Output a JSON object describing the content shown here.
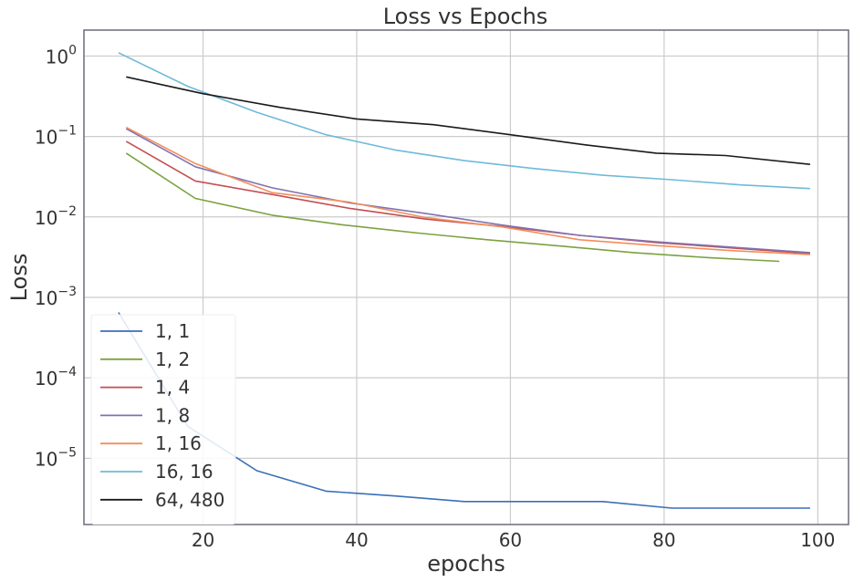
{
  "chart_data": {
    "type": "line",
    "title": "Loss vs Epochs",
    "xlabel": "epochs",
    "ylabel": "Loss",
    "xlim": [
      4.5,
      104
    ],
    "ylim": [
      1.5e-06,
      2.1
    ],
    "yscale": "log",
    "grid": true,
    "legend_position": "bottom-left",
    "xticks": [
      20,
      40,
      60,
      80,
      100
    ],
    "xtick_labels": [
      "20",
      "40",
      "60",
      "80",
      "100"
    ],
    "yticks": [
      1e-05,
      0.0001,
      0.001,
      0.01,
      0.1,
      1
    ],
    "ytick_labels": [
      {
        "base": "10",
        "exp": "−5"
      },
      {
        "base": "10",
        "exp": "−4"
      },
      {
        "base": "10",
        "exp": "−3"
      },
      {
        "base": "10",
        "exp": "−2"
      },
      {
        "base": "10",
        "exp": "−1"
      },
      {
        "base": "10",
        "exp": "0"
      }
    ],
    "series": [
      {
        "name": "1, 1",
        "color": "#3a6fba",
        "x": [
          9,
          18,
          27,
          36,
          45,
          54,
          63,
          72,
          81,
          90,
          99
        ],
        "y": [
          0.00065,
          2.5e-05,
          7e-06,
          3.9e-06,
          3.4e-06,
          2.9e-06,
          2.9e-06,
          2.9e-06,
          2.4e-06,
          2.4e-06,
          2.4e-06
        ]
      },
      {
        "name": "1, 2",
        "color": "#7ba23f",
        "x": [
          10,
          19,
          29,
          38,
          48,
          57,
          67,
          76,
          86,
          95
        ],
        "y": [
          0.062,
          0.017,
          0.0105,
          0.008,
          0.0063,
          0.0052,
          0.0043,
          0.0036,
          0.0031,
          0.0028
        ]
      },
      {
        "name": "1, 4",
        "color": "#c44e52",
        "x": [
          10,
          19,
          29,
          39,
          49,
          59,
          69,
          79,
          89,
          99
        ],
        "y": [
          0.087,
          0.028,
          0.019,
          0.0128,
          0.0094,
          0.0076,
          0.0059,
          0.0048,
          0.0041,
          0.0035
        ]
      },
      {
        "name": "1, 8",
        "color": "#8172b2",
        "x": [
          10,
          19,
          29,
          39,
          49,
          59,
          69,
          79,
          89,
          99
        ],
        "y": [
          0.125,
          0.042,
          0.023,
          0.015,
          0.011,
          0.0079,
          0.0059,
          0.0049,
          0.0042,
          0.0036
        ]
      },
      {
        "name": "1, 16",
        "color": "#f28e5b",
        "x": [
          10,
          19,
          29,
          39,
          49,
          59,
          69,
          79,
          89,
          99
        ],
        "y": [
          0.13,
          0.046,
          0.02,
          0.0153,
          0.0098,
          0.0075,
          0.0052,
          0.0044,
          0.0038,
          0.0034
        ]
      },
      {
        "name": "16, 16",
        "color": "#6fbad9",
        "x": [
          9,
          18,
          27,
          36,
          45,
          54,
          63,
          72,
          81,
          90,
          99
        ],
        "y": [
          1.1,
          0.42,
          0.2,
          0.105,
          0.068,
          0.05,
          0.04,
          0.033,
          0.029,
          0.025,
          0.0225
        ]
      },
      {
        "name": "64, 480",
        "color": "#1a1a1a",
        "x": [
          10,
          20,
          30,
          40,
          50,
          60,
          70,
          79,
          88,
          99
        ],
        "y": [
          0.55,
          0.34,
          0.23,
          0.165,
          0.14,
          0.105,
          0.078,
          0.062,
          0.058,
          0.045
        ]
      }
    ]
  }
}
